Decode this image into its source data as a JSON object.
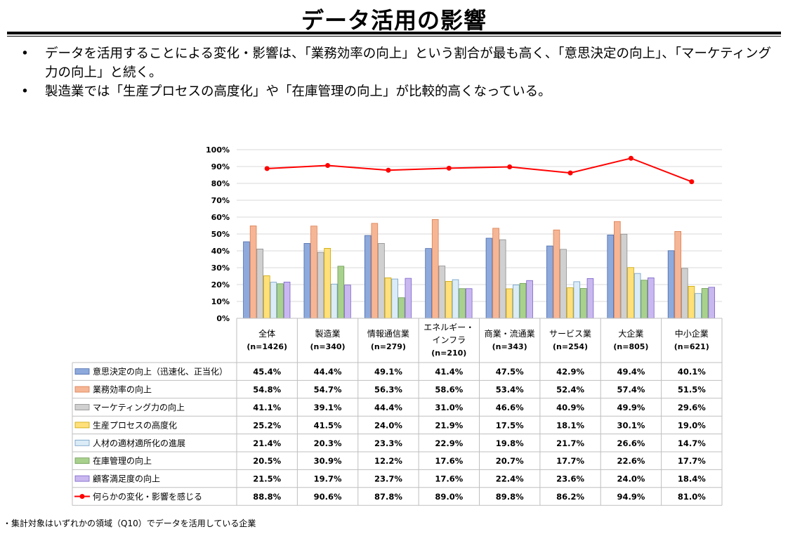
{
  "page": {
    "title": "データ活用の影響",
    "bullets": [
      "データを活用することによる変化・影響は、「業務効率の向上」という割合が最も高く、「意思決定の向上」、「マーケティング力の向上」と続く。",
      "製造業では「生産プロセスの高度化」や「在庫管理の向上」が比較的高くなっている。"
    ],
    "footnote": "・集計対象はいずれかの領域（Q10）でデータを活用している企業"
  },
  "chart_data": {
    "type": "bar",
    "categories": [
      {
        "name_lines": [
          "全体"
        ],
        "n": "(n=1426)"
      },
      {
        "name_lines": [
          "製造業"
        ],
        "n": "(n=340)"
      },
      {
        "name_lines": [
          "情報通信業"
        ],
        "n": "(n=279)"
      },
      {
        "name_lines": [
          "エネルギー・",
          "インフラ"
        ],
        "n": "(n=210)"
      },
      {
        "name_lines": [
          "商業・流通業"
        ],
        "n": "(n=343)"
      },
      {
        "name_lines": [
          "サービス業"
        ],
        "n": "(n=254)"
      },
      {
        "name_lines": [
          "大企業"
        ],
        "n": "(n=805)"
      },
      {
        "name_lines": [
          "中小企業"
        ],
        "n": "(n=621)"
      }
    ],
    "series": [
      {
        "name": "意思決定の向上（迅速化、正当化）",
        "kind": "bar",
        "fill": "#8eaadc",
        "stroke": "#4a6aab",
        "values": [
          45.4,
          44.4,
          49.1,
          41.4,
          47.5,
          42.9,
          49.4,
          40.1
        ]
      },
      {
        "name": "業務効率の向上",
        "kind": "bar",
        "fill": "#f6b696",
        "stroke": "#d97d4f",
        "values": [
          54.8,
          54.7,
          56.3,
          58.6,
          53.4,
          52.4,
          57.4,
          51.5
        ]
      },
      {
        "name": "マーケティング力の向上",
        "kind": "bar",
        "fill": "#d0d0d0",
        "stroke": "#8c8c8c",
        "values": [
          41.1,
          39.1,
          44.4,
          31.0,
          46.6,
          40.9,
          49.9,
          29.6
        ]
      },
      {
        "name": "生産プロセスの高度化",
        "kind": "bar",
        "fill": "#ffe07a",
        "stroke": "#c9a500",
        "values": [
          25.2,
          41.5,
          24.0,
          21.9,
          17.5,
          18.1,
          30.1,
          19.0
        ]
      },
      {
        "name": "人材の適材適所化の進展",
        "kind": "bar",
        "fill": "#dbecf7",
        "stroke": "#6f9bc4",
        "values": [
          21.4,
          20.3,
          23.3,
          22.9,
          19.8,
          21.7,
          26.6,
          14.7
        ]
      },
      {
        "name": "在庫管理の向上",
        "kind": "bar",
        "fill": "#a9d18e",
        "stroke": "#6a9a50",
        "values": [
          20.5,
          30.9,
          12.2,
          17.6,
          20.7,
          17.7,
          22.6,
          17.7
        ]
      },
      {
        "name": "顧客満足度の向上",
        "kind": "bar",
        "fill": "#c9b8f0",
        "stroke": "#7b63c8",
        "values": [
          21.5,
          19.7,
          23.7,
          17.6,
          22.4,
          23.6,
          24.0,
          18.4
        ]
      },
      {
        "name": "何らかの変化・影響を感じる",
        "kind": "line",
        "color": "#ff0000",
        "values": [
          88.8,
          90.6,
          87.8,
          89.0,
          89.8,
          86.2,
          94.9,
          81.0
        ]
      }
    ],
    "value_format": "percent_1dp",
    "y_axis": {
      "min": 0,
      "max": 100,
      "step": 10,
      "unit": "%"
    },
    "grid": true,
    "legend_placement": "table-left"
  }
}
